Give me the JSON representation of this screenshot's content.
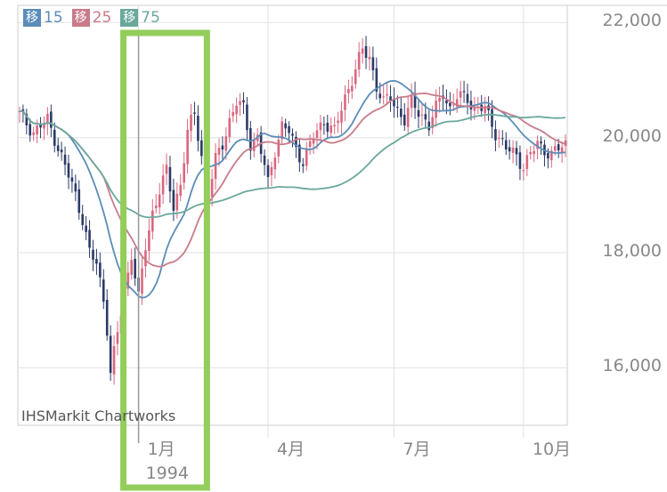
{
  "legend": [
    {
      "box": "移",
      "value": "15",
      "color": "#5b8db8"
    },
    {
      "box": "移",
      "value": "25",
      "color": "#c97b8a"
    },
    {
      "box": "移",
      "value": "75",
      "color": "#6aa89c"
    }
  ],
  "watermark": "IHSMarkit Chartworks",
  "chart_data": {
    "type": "candlestick",
    "y_ticks": [
      "22,000",
      "20,000",
      "18,000",
      "16,000"
    ],
    "y_tick_values": [
      22000,
      20000,
      18000,
      16000
    ],
    "ylim": [
      15000,
      22300
    ],
    "x_ticks": [
      {
        "label": "1月",
        "sub": "1994",
        "index": 34
      },
      {
        "label": "4月",
        "sub": "",
        "index": 71
      },
      {
        "label": "7月",
        "sub": "",
        "index": 107
      },
      {
        "label": "10月",
        "sub": "",
        "index": 144
      }
    ],
    "n_points": 157,
    "close_anchors": [
      [
        0,
        20400
      ],
      [
        4,
        20100
      ],
      [
        8,
        20300
      ],
      [
        10,
        20000
      ],
      [
        13,
        19500
      ],
      [
        16,
        19000
      ],
      [
        18,
        18600
      ],
      [
        20,
        18000
      ],
      [
        22,
        17800
      ],
      [
        24,
        17200
      ],
      [
        25,
        16700
      ],
      [
        26,
        15900
      ],
      [
        28,
        16600
      ],
      [
        30,
        17300
      ],
      [
        32,
        18000
      ],
      [
        34,
        17200
      ],
      [
        36,
        18100
      ],
      [
        38,
        18700
      ],
      [
        40,
        19100
      ],
      [
        42,
        19400
      ],
      [
        44,
        18800
      ],
      [
        46,
        19200
      ],
      [
        48,
        20100
      ],
      [
        50,
        20400
      ],
      [
        52,
        19700
      ],
      [
        54,
        19000
      ],
      [
        56,
        19600
      ],
      [
        58,
        19900
      ],
      [
        60,
        20300
      ],
      [
        62,
        20600
      ],
      [
        64,
        20500
      ],
      [
        66,
        19900
      ],
      [
        68,
        20000
      ],
      [
        70,
        19500
      ],
      [
        71,
        19200
      ],
      [
        73,
        19800
      ],
      [
        75,
        20200
      ],
      [
        77,
        20100
      ],
      [
        79,
        19800
      ],
      [
        81,
        19600
      ],
      [
        84,
        20000
      ],
      [
        87,
        20300
      ],
      [
        90,
        20100
      ],
      [
        93,
        20700
      ],
      [
        96,
        21200
      ],
      [
        98,
        21500
      ],
      [
        100,
        21400
      ],
      [
        102,
        20900
      ],
      [
        104,
        20600
      ],
      [
        106,
        20700
      ],
      [
        108,
        20500
      ],
      [
        110,
        20300
      ],
      [
        112,
        20600
      ],
      [
        115,
        20400
      ],
      [
        117,
        20200
      ],
      [
        119,
        20500
      ],
      [
        121,
        20800
      ],
      [
        123,
        20500
      ],
      [
        125,
        20700
      ],
      [
        128,
        20700
      ],
      [
        130,
        20500
      ],
      [
        133,
        20500
      ],
      [
        136,
        20100
      ],
      [
        139,
        19800
      ],
      [
        142,
        19700
      ],
      [
        144,
        19500
      ],
      [
        146,
        19700
      ],
      [
        148,
        19900
      ],
      [
        150,
        19800
      ],
      [
        152,
        19700
      ],
      [
        154,
        19800
      ],
      [
        156,
        19900
      ]
    ],
    "ma": [
      {
        "name": "15",
        "color": "#5b8db8",
        "window": 15
      },
      {
        "name": "25",
        "color": "#c97b8a",
        "window": 25
      },
      {
        "name": "75",
        "color": "#6aa89c",
        "window": 75
      }
    ],
    "up_color": "#d9677f",
    "down_color": "#2b3a67",
    "cursor_index": 34,
    "highlight_range": [
      34,
      52
    ],
    "grid": true
  }
}
